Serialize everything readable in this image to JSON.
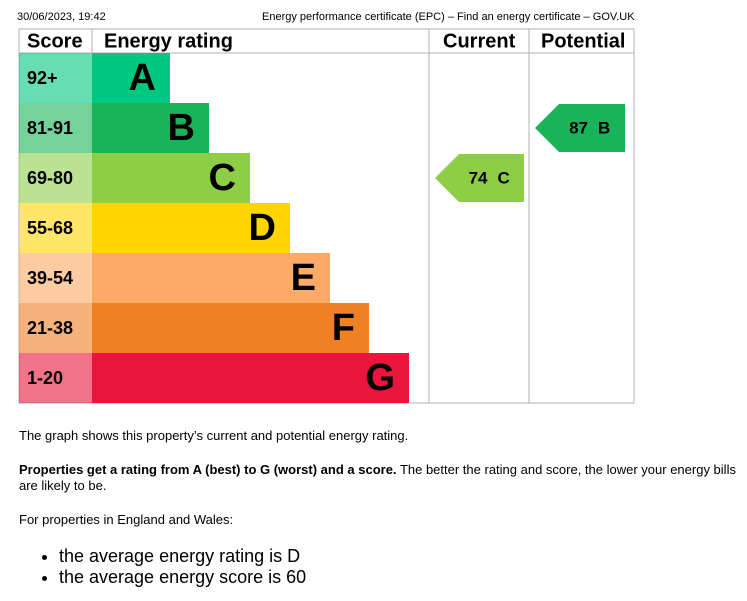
{
  "header": {
    "date": "30/06/2023, 19:42",
    "title": "Energy performance certificate (EPC) – Find an energy certificate – GOV.UK"
  },
  "epc": {
    "columns": [
      "Score",
      "Energy rating",
      "Current",
      "Potential"
    ],
    "bands": [
      {
        "score": "92+",
        "letter": "A",
        "color": "#00c781"
      },
      {
        "score": "81-91",
        "letter": "B",
        "color": "#19b459"
      },
      {
        "score": "69-80",
        "letter": "C",
        "color": "#8dce46"
      },
      {
        "score": "55-68",
        "letter": "D",
        "color": "#ffd500"
      },
      {
        "score": "39-54",
        "letter": "E",
        "color": "#fcaa65"
      },
      {
        "score": "21-38",
        "letter": "F",
        "color": "#ef8023"
      },
      {
        "score": "1-20",
        "letter": "G",
        "color": "#e9153b"
      }
    ],
    "current": {
      "score": 74,
      "rating": "C"
    },
    "potential": {
      "score": 87,
      "rating": "B"
    }
  },
  "paragraphs": [
    {
      "text": "The graph shows this property’s current and potential energy rating."
    },
    {
      "bold": "Properties get a rating from A (best) to G (worst) and a score.",
      "text": "The better the rating and score, the lower your energy bills are likely to be."
    },
    {
      "text": "For properties in England and Wales:"
    }
  ],
  "bullets": [
    "the average energy rating is D",
    "the average energy score is 60"
  ]
}
